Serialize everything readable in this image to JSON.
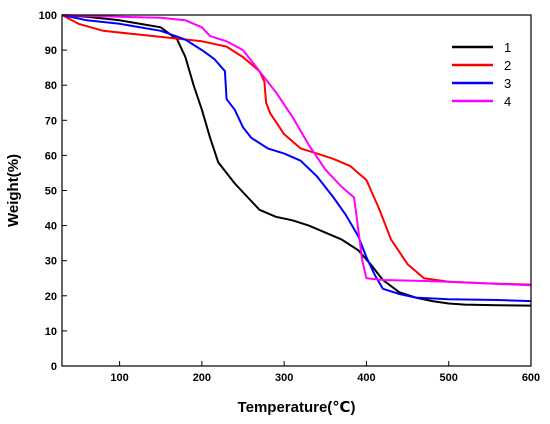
{
  "chart_data": {
    "type": "line",
    "title": "",
    "xlabel": "Temperature(℃)",
    "ylabel": "Weight(%)",
    "xlim": [
      30,
      600
    ],
    "ylim": [
      0,
      100
    ],
    "xticks": [
      100,
      200,
      300,
      400,
      500,
      600
    ],
    "yticks": [
      0,
      10,
      20,
      30,
      40,
      50,
      60,
      70,
      80,
      90,
      100
    ],
    "grid": false,
    "legend_position": "top-right",
    "series": [
      {
        "name": "1",
        "color": "#000000",
        "points": [
          [
            30,
            100
          ],
          [
            60,
            99.5
          ],
          [
            100,
            98.5
          ],
          [
            150,
            96.5
          ],
          [
            170,
            93
          ],
          [
            180,
            88
          ],
          [
            190,
            80
          ],
          [
            200,
            73
          ],
          [
            210,
            65
          ],
          [
            220,
            58
          ],
          [
            240,
            52
          ],
          [
            260,
            47
          ],
          [
            270,
            44.5
          ],
          [
            290,
            42.5
          ],
          [
            310,
            41.5
          ],
          [
            330,
            40
          ],
          [
            350,
            38
          ],
          [
            370,
            36
          ],
          [
            390,
            33
          ],
          [
            405,
            29
          ],
          [
            420,
            24.5
          ],
          [
            440,
            21
          ],
          [
            460,
            19.5
          ],
          [
            480,
            18.5
          ],
          [
            500,
            17.8
          ],
          [
            520,
            17.5
          ],
          [
            560,
            17.3
          ],
          [
            600,
            17.2
          ]
        ]
      },
      {
        "name": "2",
        "color": "#ff0000",
        "points": [
          [
            30,
            100
          ],
          [
            50,
            97.5
          ],
          [
            80,
            95.5
          ],
          [
            120,
            94.5
          ],
          [
            160,
            93.5
          ],
          [
            200,
            92.5
          ],
          [
            230,
            91
          ],
          [
            250,
            88
          ],
          [
            270,
            84
          ],
          [
            276,
            81
          ],
          [
            278,
            75
          ],
          [
            283,
            72
          ],
          [
            300,
            66
          ],
          [
            320,
            62
          ],
          [
            340,
            60.5
          ],
          [
            360,
            59
          ],
          [
            380,
            57
          ],
          [
            400,
            53
          ],
          [
            415,
            45
          ],
          [
            430,
            36
          ],
          [
            450,
            29
          ],
          [
            470,
            25
          ],
          [
            500,
            24
          ],
          [
            550,
            23.5
          ],
          [
            600,
            23.2
          ]
        ]
      },
      {
        "name": "3",
        "color": "#0000ff",
        "points": [
          [
            30,
            100
          ],
          [
            60,
            98.5
          ],
          [
            100,
            97.5
          ],
          [
            150,
            95.5
          ],
          [
            180,
            93
          ],
          [
            200,
            90
          ],
          [
            215,
            87.5
          ],
          [
            228,
            84
          ],
          [
            230,
            76
          ],
          [
            240,
            73
          ],
          [
            250,
            68
          ],
          [
            260,
            65
          ],
          [
            280,
            62
          ],
          [
            300,
            60.5
          ],
          [
            320,
            58.5
          ],
          [
            340,
            54
          ],
          [
            360,
            48
          ],
          [
            375,
            43
          ],
          [
            390,
            37
          ],
          [
            400,
            31
          ],
          [
            410,
            26
          ],
          [
            420,
            22
          ],
          [
            440,
            20.5
          ],
          [
            460,
            19.5
          ],
          [
            500,
            19
          ],
          [
            560,
            18.8
          ],
          [
            600,
            18.5
          ]
        ]
      },
      {
        "name": "4",
        "color": "#ff00ff",
        "points": [
          [
            30,
            100
          ],
          [
            100,
            99.5
          ],
          [
            150,
            99.2
          ],
          [
            180,
            98.5
          ],
          [
            200,
            96.5
          ],
          [
            210,
            94
          ],
          [
            230,
            92.5
          ],
          [
            250,
            90
          ],
          [
            270,
            84
          ],
          [
            290,
            78
          ],
          [
            310,
            71
          ],
          [
            330,
            63
          ],
          [
            350,
            56
          ],
          [
            370,
            51
          ],
          [
            385,
            48
          ],
          [
            395,
            30
          ],
          [
            400,
            25
          ],
          [
            420,
            24.5
          ],
          [
            460,
            24.3
          ],
          [
            500,
            24
          ],
          [
            550,
            23.5
          ],
          [
            600,
            23
          ]
        ]
      }
    ]
  }
}
